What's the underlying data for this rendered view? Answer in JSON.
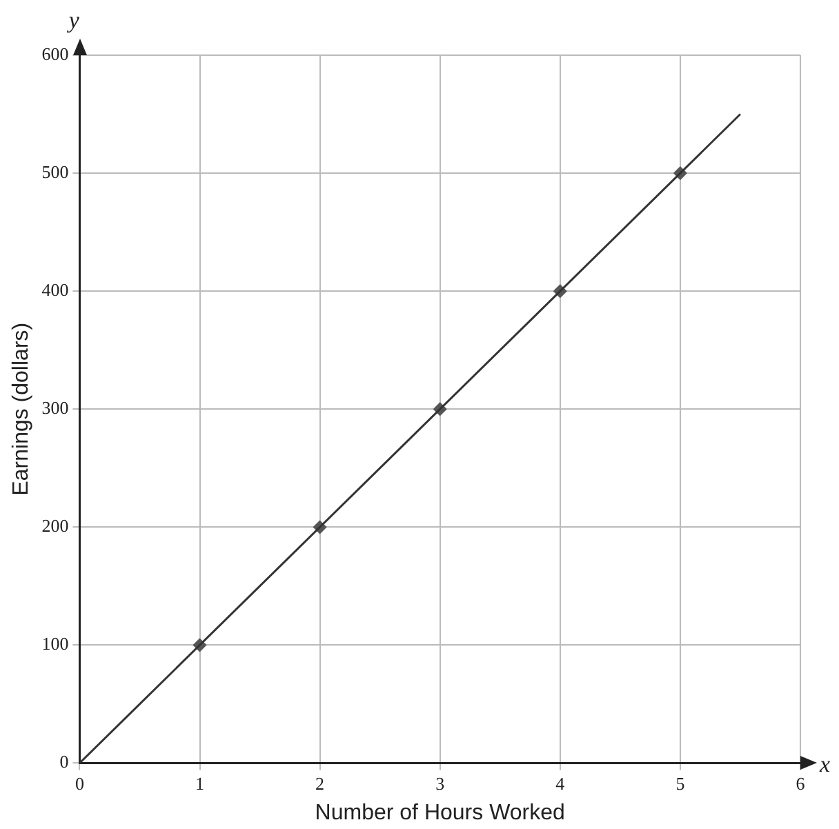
{
  "chart_data": {
    "type": "line",
    "xlabel": "Number of Hours Worked",
    "ylabel": "Earnings (dollars)",
    "annotations": [
      "y",
      "x"
    ],
    "xlim": [
      0,
      6
    ],
    "xticks": [
      0,
      1,
      2,
      3,
      4,
      5,
      6
    ],
    "ylim": [
      0,
      600
    ],
    "yticks": [
      0,
      100,
      200,
      300,
      400,
      500,
      600
    ],
    "grid": true,
    "series": [
      {
        "color": "#333333",
        "x": [
          0,
          5.5
        ],
        "values": [
          0,
          550
        ],
        "marker": "none"
      },
      {
        "type": "scatter",
        "color": "#555555",
        "x": [
          1,
          2,
          3,
          4,
          5
        ],
        "values": [
          100,
          200,
          300,
          400,
          500
        ],
        "marker": "diamond"
      }
    ]
  }
}
